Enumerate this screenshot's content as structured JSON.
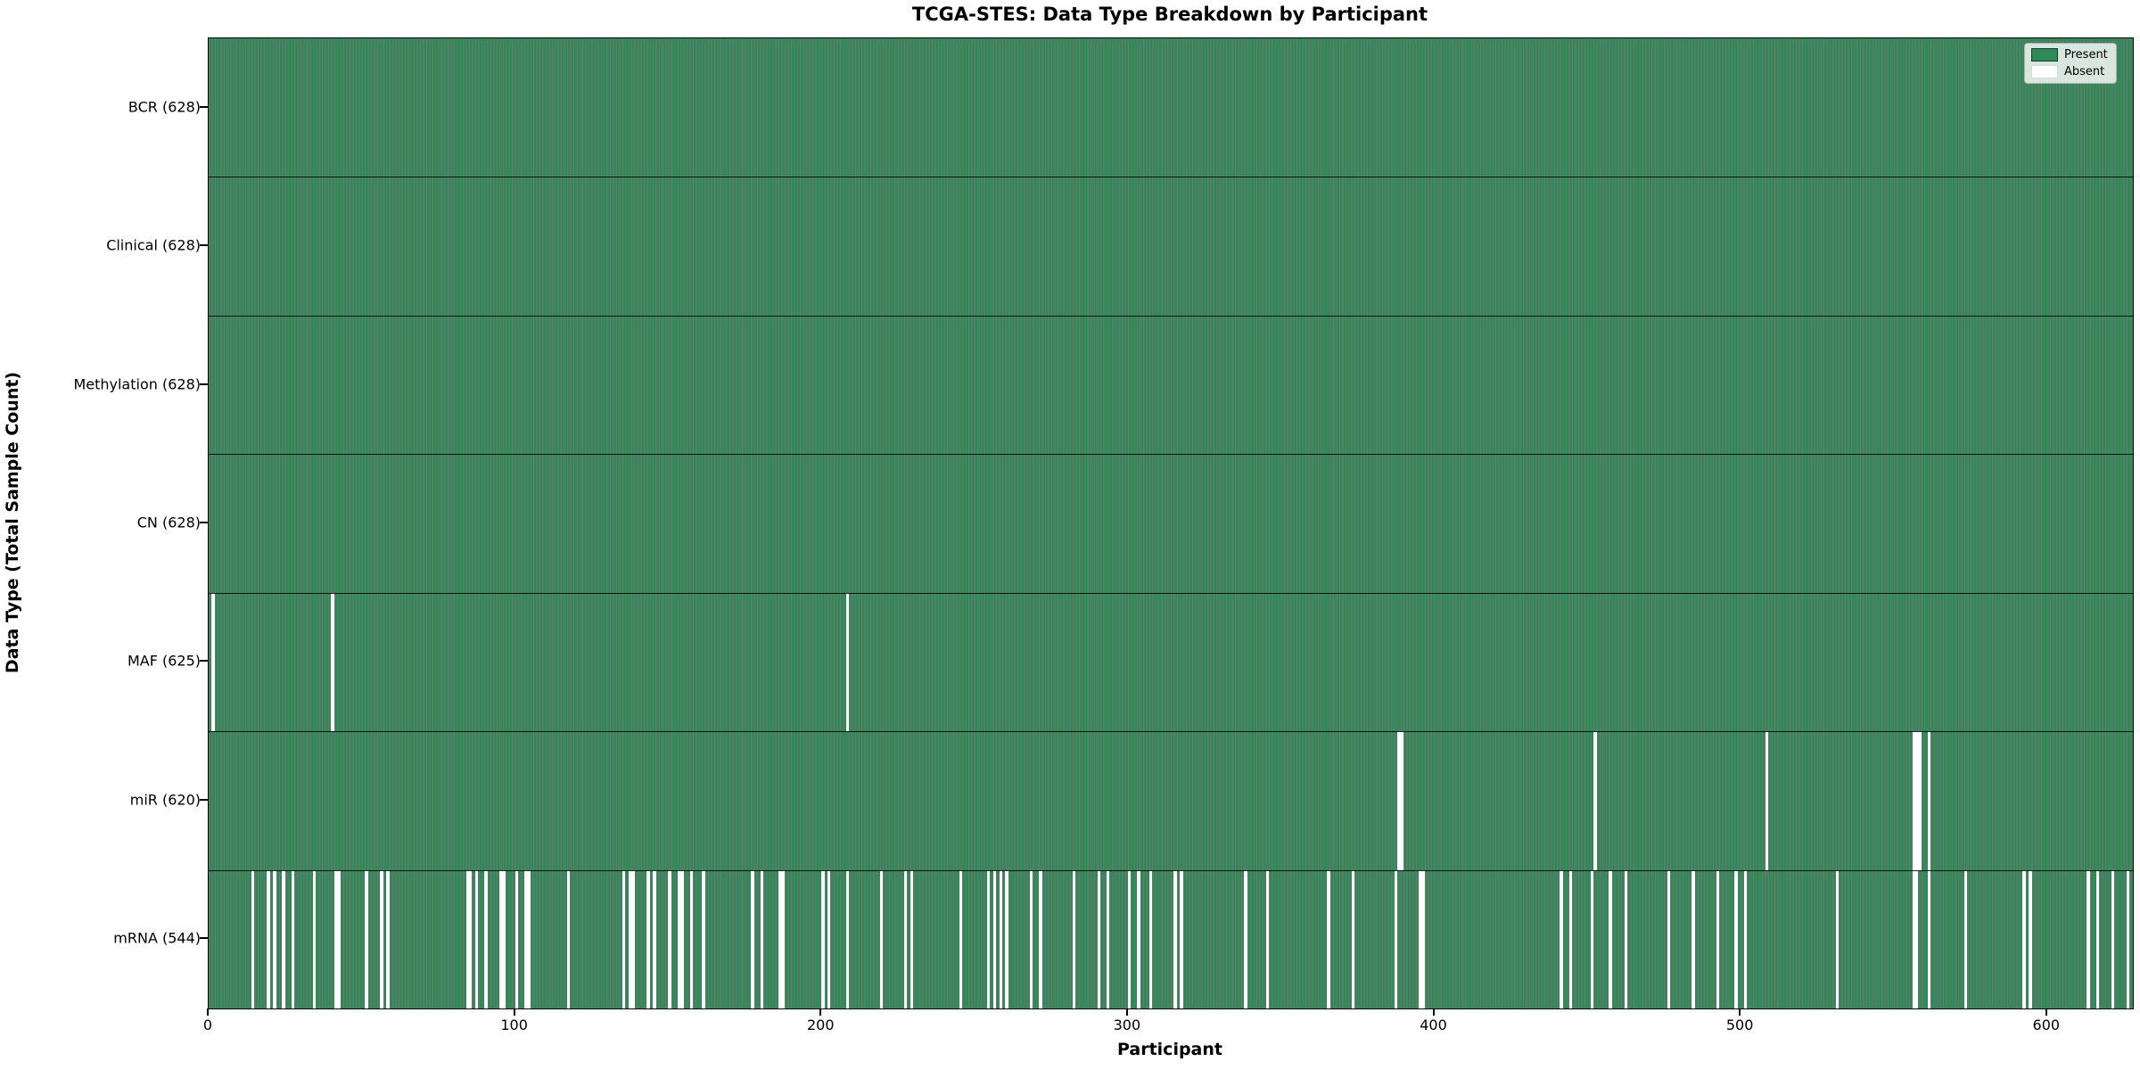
{
  "chart_data": {
    "type": "heatmap",
    "title": "TCGA-STES: Data Type Breakdown by Participant",
    "xlabel": "Participant",
    "ylabel": "Data Type (Total Sample Count)",
    "n_participants": 628,
    "x_ticks": [
      0,
      100,
      200,
      300,
      400,
      500,
      600
    ],
    "legend_position": "upper right",
    "legend_entries": [
      {
        "label": "Present",
        "color": "#2e8b57"
      },
      {
        "label": "Absent",
        "color": "#ffffff"
      }
    ],
    "colors": {
      "present_fill": "#2e8b57",
      "bar_edge": "rgba(0,0,0,0.55)",
      "absent_fill": "#ffffff",
      "axis": "#000000"
    },
    "rows": [
      {
        "name": "BCR",
        "count": 628,
        "label": "BCR (628)",
        "absent_participants": []
      },
      {
        "name": "Clinical",
        "count": 628,
        "label": "Clinical (628)",
        "absent_participants": []
      },
      {
        "name": "Methylation",
        "count": 628,
        "label": "Methylation (628)",
        "absent_participants": []
      },
      {
        "name": "CN",
        "count": 628,
        "label": "CN (628)",
        "absent_participants": []
      },
      {
        "name": "MAF",
        "count": 625,
        "label": "MAF (625)",
        "absent_participants": [
          1,
          40,
          208
        ]
      },
      {
        "name": "miR",
        "count": 620,
        "label": "miR (620)",
        "absent_participants": [
          388,
          389,
          452,
          508,
          556,
          557,
          558,
          561
        ]
      },
      {
        "name": "mRNA",
        "count": 544,
        "label": "mRNA (544)",
        "absent_participants": [
          14,
          19,
          21,
          24,
          27,
          34,
          41,
          42,
          51,
          56,
          58,
          84,
          85,
          87,
          90,
          95,
          96,
          100,
          103,
          104,
          117,
          135,
          137,
          138,
          143,
          145,
          150,
          153,
          154,
          157,
          161,
          177,
          180,
          186,
          187,
          200,
          202,
          208,
          219,
          227,
          229,
          245,
          254,
          256,
          258,
          260,
          268,
          271,
          282,
          290,
          293,
          300,
          303,
          307,
          315,
          317,
          338,
          345,
          365,
          373,
          387,
          395,
          396,
          441,
          444,
          451,
          457,
          462,
          476,
          484,
          492,
          498,
          501,
          531,
          556,
          557,
          561,
          573,
          592,
          594,
          613,
          616,
          621,
          626
        ]
      }
    ]
  }
}
